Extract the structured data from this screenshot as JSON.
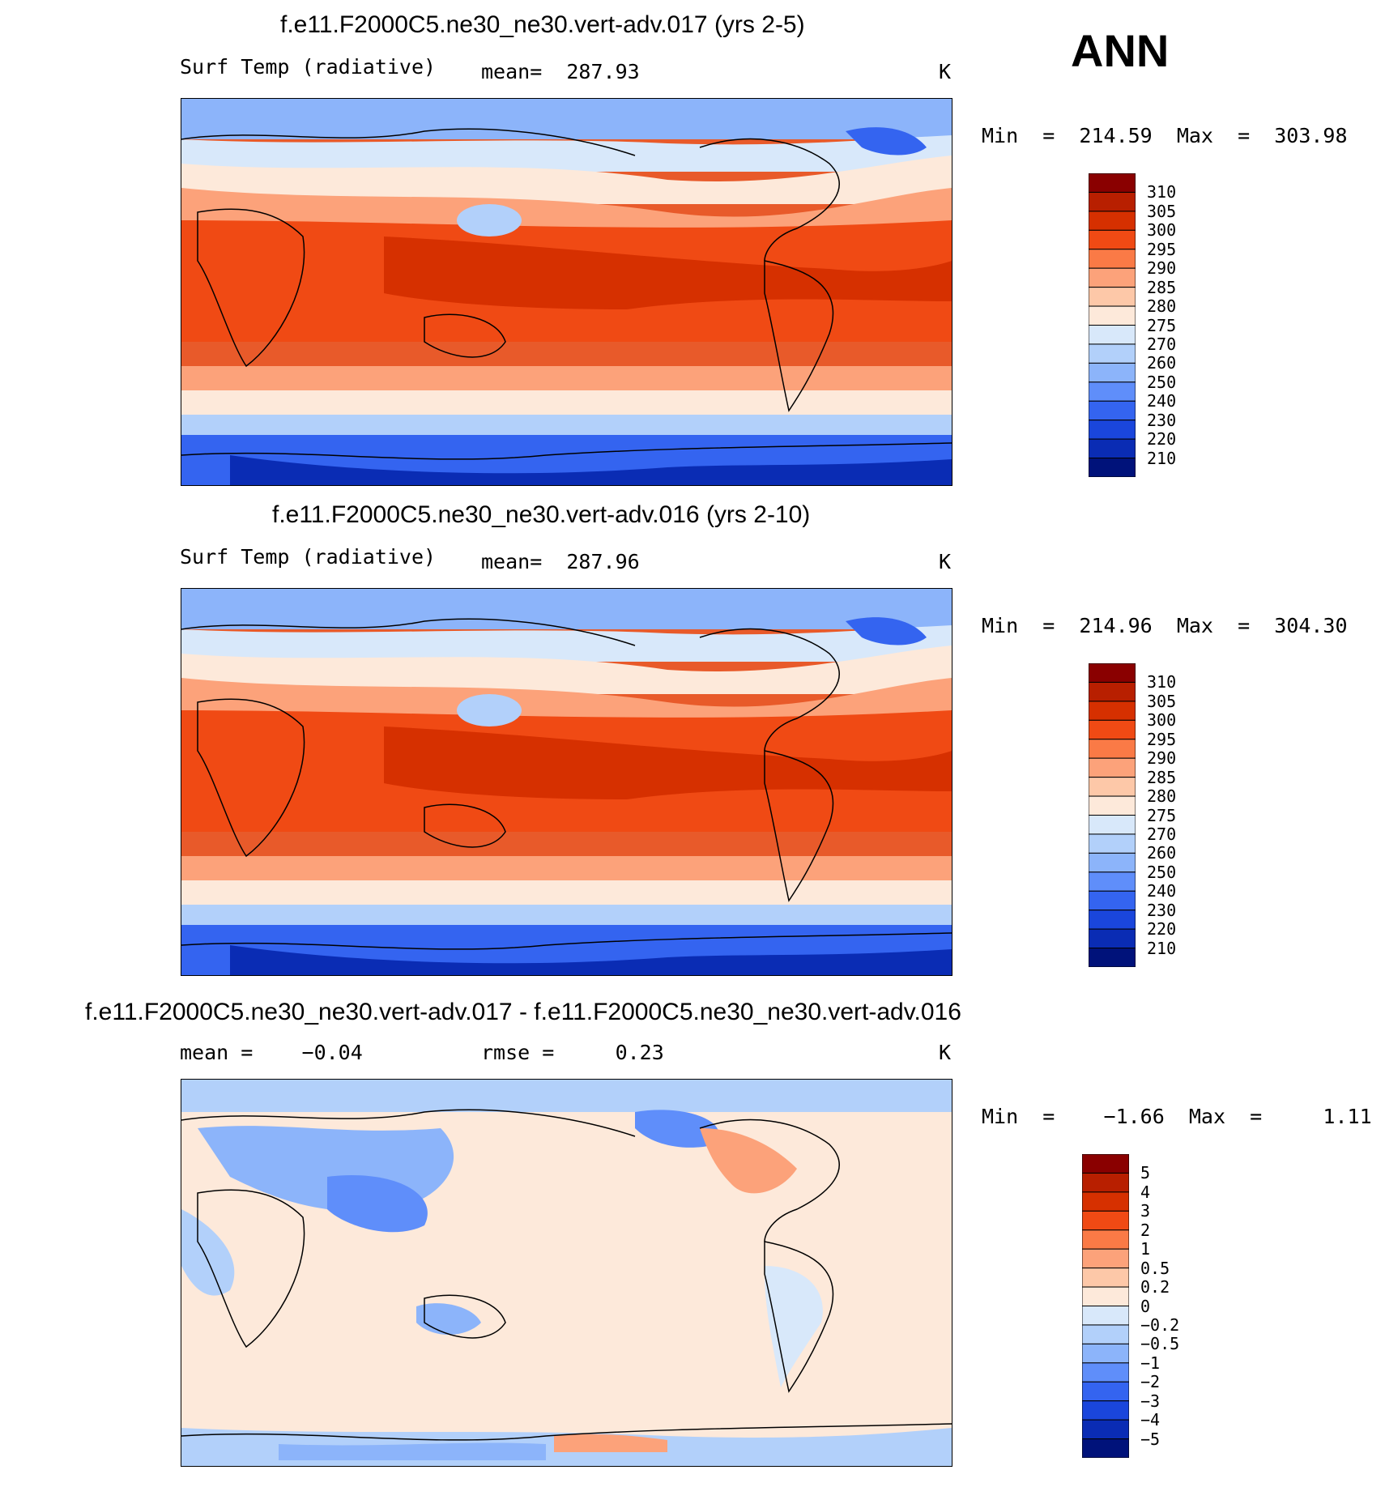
{
  "season": "ANN",
  "panels": [
    {
      "title": "f.e11.F2000C5.ne30_ne30.vert-adv.017 (yrs 2-5)",
      "left_label": "Surf Temp (radiative)",
      "mid_label": "mean=  287.93",
      "units": "K",
      "minmax": "Min  =  214.59  Max  =  303.98",
      "scale": "abs"
    },
    {
      "title": "f.e11.F2000C5.ne30_ne30.vert-adv.016 (yrs 2-10)",
      "left_label": "Surf Temp (radiative)",
      "mid_label": "mean=  287.96",
      "units": "K",
      "minmax": "Min  =  214.96  Max  =  304.30",
      "scale": "abs"
    },
    {
      "title": "f.e11.F2000C5.ne30_ne30.vert-adv.017 - f.e11.F2000C5.ne30_ne30.vert-adv.016",
      "left_label": "mean =    −0.04",
      "mid_label": "rmse =     0.23",
      "units": "K",
      "minmax": "Min  =    −1.66  Max  =     1.11",
      "scale": "diff"
    }
  ],
  "colorbars": {
    "abs": {
      "labels": [
        "310",
        "305",
        "300",
        "295",
        "290",
        "285",
        "280",
        "275",
        "270",
        "260",
        "250",
        "240",
        "230",
        "220",
        "210"
      ],
      "colors": [
        "#8a0000",
        "#b81f00",
        "#d63000",
        "#f04a14",
        "#fa7a46",
        "#fca27a",
        "#fdc8a8",
        "#fde9da",
        "#d8e8fa",
        "#b2d0fa",
        "#8cb4fa",
        "#5f8efa",
        "#3464f0",
        "#1a46dc",
        "#0a2cb4",
        "#00127a"
      ]
    },
    "diff": {
      "labels": [
        "5",
        "4",
        "3",
        "2",
        "1",
        "0.5",
        "0.2",
        "0",
        "−0.2",
        "−0.5",
        "−1",
        "−2",
        "−3",
        "−4",
        "−5"
      ],
      "colors": [
        "#8a0000",
        "#b81f00",
        "#d63000",
        "#f04a14",
        "#fa7a46",
        "#fca27a",
        "#fdc8a8",
        "#fde9da",
        "#d8e8fa",
        "#b2d0fa",
        "#8cb4fa",
        "#5f8efa",
        "#3464f0",
        "#1a46dc",
        "#0a2cb4",
        "#00127a"
      ]
    }
  }
}
